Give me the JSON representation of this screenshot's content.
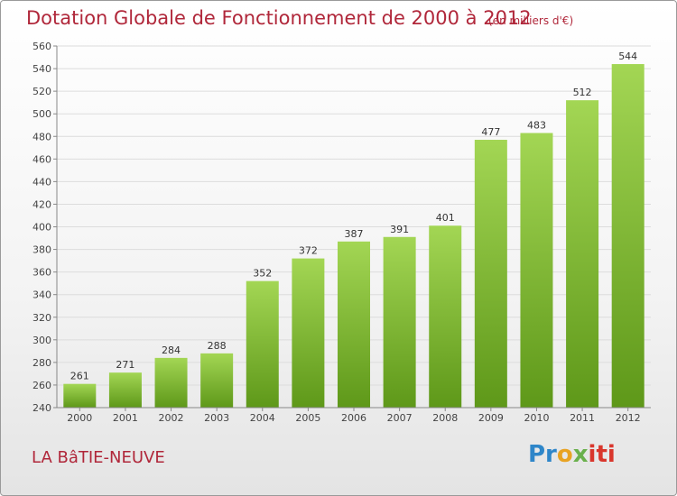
{
  "header": {
    "title": "Dotation Globale de Fonctionnement de 2000 à 2012",
    "unit_note": "(en milliers d'€)"
  },
  "footer": {
    "commune": "LA BâTIE-NEUVE",
    "logo_text": "Proxiti"
  },
  "colors": {
    "title": "#b0273a",
    "bar_light": "#9fd24f",
    "bar_dark": "#5f9a1a",
    "gridline": "#dedede"
  },
  "chart_data": {
    "type": "bar",
    "categories": [
      "2000",
      "2001",
      "2002",
      "2003",
      "2004",
      "2005",
      "2006",
      "2007",
      "2008",
      "2009",
      "2010",
      "2011",
      "2012"
    ],
    "values": [
      261,
      271,
      284,
      288,
      352,
      372,
      387,
      391,
      401,
      477,
      483,
      512,
      544
    ],
    "title": "Dotation Globale de Fonctionnement de 2000 à 2012",
    "subtitle": "(en milliers d'€)",
    "xlabel": "",
    "ylabel": "",
    "ylim": [
      240,
      560
    ],
    "yticks": [
      240,
      260,
      280,
      300,
      320,
      340,
      360,
      380,
      400,
      420,
      440,
      460,
      480,
      500,
      520,
      540,
      560
    ],
    "grid": true,
    "data_labels": true,
    "legend": "none"
  }
}
